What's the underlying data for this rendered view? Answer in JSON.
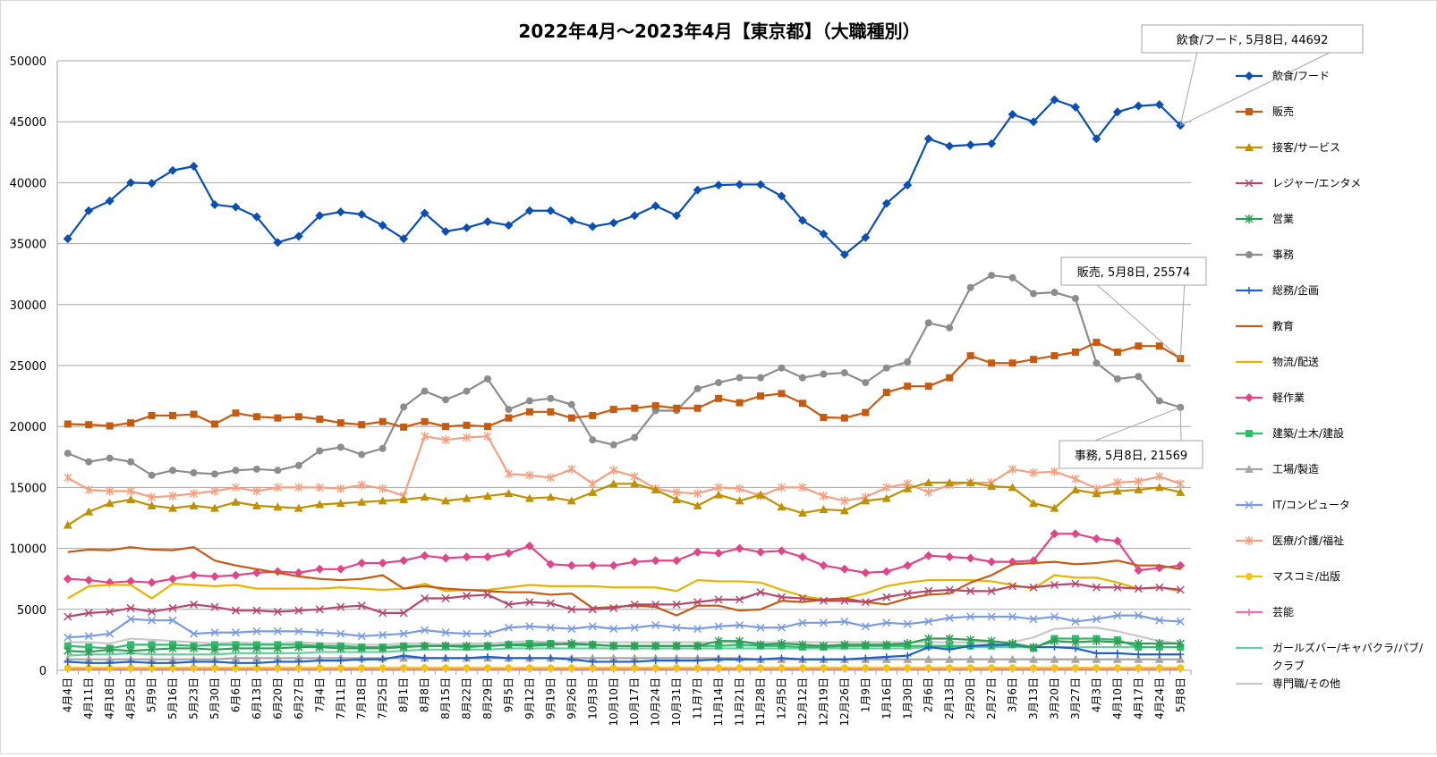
{
  "chart_data": {
    "type": "line",
    "title": "2022年4月～2023年4月【東京都】（大職種別）",
    "xlabel": "",
    "ylabel": "",
    "ylim": [
      0,
      50000
    ],
    "yticks": [
      0,
      5000,
      10000,
      15000,
      20000,
      25000,
      30000,
      35000,
      40000,
      45000,
      50000
    ],
    "grid": true,
    "legend_position": "right",
    "categories": [
      "4月4日",
      "4月11日",
      "4月18日",
      "4月25日",
      "5月9日",
      "5月16日",
      "5月23日",
      "5月30日",
      "6月6日",
      "6月13日",
      "6月20日",
      "6月27日",
      "7月4日",
      "7月11日",
      "7月18日",
      "7月25日",
      "8月1日",
      "8月8日",
      "8月15日",
      "8月22日",
      "8月29日",
      "9月5日",
      "9月12日",
      "9月19日",
      "9月26日",
      "10月3日",
      "10月10日",
      "10月17日",
      "10月24日",
      "10月31日",
      "11月7日",
      "11月14日",
      "11月21日",
      "11月28日",
      "12月5日",
      "12月12日",
      "12月19日",
      "12月26日",
      "1月9日",
      "1月16日",
      "1月30日",
      "2月6日",
      "2月13日",
      "2月20日",
      "2月27日",
      "3月6日",
      "3月13日",
      "3月20日",
      "3月27日",
      "4月3日",
      "4月10日",
      "4月17日",
      "4月24日",
      "5月8日"
    ],
    "series": [
      {
        "name": "飲食/フード",
        "color": "#0b4fb3",
        "marker": "diamond",
        "values": [
          35400,
          37700,
          38500,
          40000,
          39950,
          41000,
          41350,
          38200,
          38000,
          37200,
          35100,
          35600,
          37300,
          37600,
          37400,
          36500,
          35400,
          37500,
          36000,
          36300,
          36800,
          36500,
          37700,
          37700,
          36900,
          36400,
          36700,
          37300,
          38100,
          37300,
          39400,
          39800,
          39850,
          39850,
          38900,
          36900,
          35800,
          34100,
          35500,
          38300,
          39800,
          43600,
          43000,
          43100,
          43200,
          45600,
          45000,
          46800,
          46200,
          43600,
          45800,
          46300,
          46400,
          44692
        ]
      },
      {
        "name": "販売",
        "color": "#c55a11",
        "marker": "square",
        "values": [
          20200,
          20150,
          20050,
          20300,
          20900,
          20900,
          21000,
          20200,
          21100,
          20800,
          20700,
          20800,
          20600,
          20300,
          20150,
          20400,
          19950,
          20400,
          20000,
          20100,
          20000,
          20700,
          21200,
          21200,
          20700,
          20900,
          21400,
          21500,
          21700,
          21500,
          21500,
          22300,
          21950,
          22500,
          22700,
          21900,
          20750,
          20700,
          21150,
          22800,
          23300,
          23300,
          24000,
          25800,
          25200,
          25200,
          25500,
          25800,
          26100,
          26900,
          26100,
          26600,
          26600,
          25574
        ]
      },
      {
        "name": "接客/サービス",
        "color": "#bf9000",
        "marker": "triangle",
        "values": [
          11900,
          13000,
          13700,
          14000,
          13500,
          13300,
          13500,
          13300,
          13800,
          13500,
          13400,
          13300,
          13600,
          13700,
          13800,
          13900,
          14000,
          14200,
          13900,
          14100,
          14300,
          14500,
          14100,
          14200,
          13900,
          14600,
          15300,
          15300,
          14800,
          14000,
          13500,
          14400,
          13900,
          14400,
          13400,
          12900,
          13200,
          13100,
          13900,
          14100,
          14900,
          15400,
          15400,
          15400,
          15100,
          15000,
          13700,
          13300,
          14800,
          14500,
          14700,
          14800,
          15000,
          14600
        ]
      },
      {
        "name": "レジャー/エンタメ",
        "color": "#b5476a",
        "marker": "x",
        "values": [
          4400,
          4700,
          4800,
          5100,
          4800,
          5100,
          5400,
          5200,
          4900,
          4900,
          4800,
          4900,
          5000,
          5200,
          5300,
          4700,
          4700,
          5900,
          5900,
          6100,
          6200,
          5400,
          5600,
          5500,
          5000,
          5000,
          5100,
          5400,
          5400,
          5400,
          5600,
          5800,
          5800,
          6400,
          6000,
          5900,
          5700,
          5700,
          5600,
          6000,
          6300,
          6500,
          6600,
          6500,
          6500,
          6900,
          6800,
          7000,
          7100,
          6800,
          6800,
          6700,
          6800,
          6600
        ]
      },
      {
        "name": "営業",
        "color": "#2e9e57",
        "marker": "star",
        "values": [
          1600,
          1500,
          1700,
          1600,
          1700,
          1800,
          1800,
          1700,
          1800,
          1800,
          1800,
          1900,
          1900,
          1800,
          1800,
          1800,
          1900,
          2000,
          2000,
          2000,
          2000,
          2100,
          2000,
          2100,
          2200,
          2100,
          2000,
          2000,
          2000,
          2000,
          2000,
          2400,
          2400,
          2100,
          2200,
          2100,
          2000,
          2100,
          2100,
          2100,
          2200,
          2600,
          2600,
          2500,
          2400,
          2200,
          1900,
          2400,
          2300,
          2400,
          2300,
          2200,
          2200,
          2200
        ]
      },
      {
        "name": "事務",
        "color": "#8c8c8c",
        "marker": "circle",
        "values": [
          17800,
          17100,
          17400,
          17100,
          16000,
          16400,
          16200,
          16100,
          16400,
          16500,
          16400,
          16800,
          18000,
          18300,
          17700,
          18200,
          21600,
          22900,
          22200,
          22900,
          23900,
          21400,
          22100,
          22300,
          21800,
          18900,
          18500,
          19100,
          21300,
          21300,
          23100,
          23600,
          24000,
          24000,
          24800,
          24000,
          24300,
          24400,
          23600,
          24800,
          25300,
          28500,
          28100,
          31400,
          32400,
          32200,
          30900,
          31000,
          30500,
          25200,
          23900,
          24100,
          22100,
          21569
        ]
      },
      {
        "name": "総務/企画",
        "color": "#1f5fc7",
        "marker": "plus",
        "values": [
          700,
          600,
          600,
          700,
          600,
          600,
          700,
          700,
          600,
          600,
          700,
          700,
          800,
          800,
          900,
          900,
          1200,
          1000,
          1000,
          1000,
          1100,
          1000,
          1000,
          1000,
          900,
          700,
          700,
          700,
          800,
          800,
          800,
          900,
          900,
          900,
          1000,
          900,
          900,
          900,
          1000,
          1100,
          1200,
          1900,
          1700,
          2000,
          2100,
          2100,
          1900,
          1900,
          1800,
          1400,
          1400,
          1300,
          1300,
          1300
        ]
      },
      {
        "name": "教育",
        "color": "#c55a11",
        "marker": "none",
        "values": [
          9700,
          9900,
          9850,
          10100,
          9900,
          9850,
          10100,
          9000,
          8600,
          8300,
          8000,
          7700,
          7500,
          7400,
          7500,
          7800,
          6700,
          6900,
          6700,
          6600,
          6500,
          6400,
          6400,
          6200,
          6300,
          5100,
          5200,
          5300,
          5200,
          4500,
          5300,
          5300,
          4900,
          5000,
          5700,
          5600,
          5800,
          5900,
          5600,
          5400,
          5900,
          6200,
          6300,
          7200,
          7800,
          8700,
          8800,
          8900,
          8700,
          8800,
          9000,
          8600,
          8600,
          8300
        ]
      },
      {
        "name": "物流/配送",
        "color": "#e6b400",
        "marker": "none",
        "values": [
          5900,
          6900,
          7000,
          7000,
          5900,
          7100,
          7000,
          6900,
          7000,
          6700,
          6700,
          6700,
          6700,
          6800,
          6700,
          6600,
          6700,
          7100,
          6500,
          6600,
          6600,
          6800,
          7000,
          6900,
          6900,
          6900,
          6800,
          6800,
          6800,
          6500,
          7400,
          7300,
          7300,
          7200,
          6600,
          6100,
          5800,
          5900,
          6300,
          6900,
          7200,
          7400,
          7400,
          7400,
          7300,
          7000,
          6700,
          7800,
          7600,
          7600,
          7200,
          6700,
          6800,
          6500
        ]
      },
      {
        "name": "軽作業",
        "color": "#e0458a",
        "marker": "diamond",
        "values": [
          7500,
          7400,
          7200,
          7300,
          7200,
          7500,
          7800,
          7700,
          7800,
          8000,
          8100,
          8000,
          8300,
          8300,
          8800,
          8800,
          9000,
          9400,
          9200,
          9300,
          9300,
          9600,
          10200,
          8700,
          8600,
          8600,
          8600,
          8900,
          9000,
          9000,
          9700,
          9600,
          10000,
          9700,
          9800,
          9300,
          8600,
          8300,
          8000,
          8100,
          8600,
          9400,
          9300,
          9200,
          8900,
          8900,
          9000,
          11200,
          11200,
          10800,
          10600,
          8200,
          8400,
          8600
        ]
      },
      {
        "name": "建築/土木/建設",
        "color": "#2ebd6a",
        "marker": "square",
        "values": [
          2000,
          1900,
          1800,
          2100,
          2100,
          2100,
          2000,
          2100,
          2100,
          2100,
          2100,
          2100,
          2000,
          2000,
          1900,
          1900,
          2000,
          2000,
          2000,
          1900,
          2000,
          2100,
          2200,
          2200,
          2100,
          2100,
          2000,
          2000,
          2000,
          2000,
          2000,
          2000,
          2100,
          2000,
          2000,
          1900,
          1900,
          2000,
          2000,
          2000,
          2000,
          2000,
          2000,
          2000,
          2000,
          2100,
          1800,
          2600,
          2600,
          2600,
          2500,
          1900,
          1900,
          1900
        ]
      },
      {
        "name": "工場/製造",
        "color": "#a6a6a6",
        "marker": "triangle",
        "values": [
          900,
          900,
          900,
          900,
          900,
          900,
          900,
          900,
          1000,
          1000,
          1000,
          1000,
          1000,
          1000,
          1000,
          1000,
          1000,
          1000,
          1000,
          1000,
          1000,
          1000,
          1000,
          1000,
          1000,
          1000,
          1000,
          1000,
          1000,
          1000,
          1000,
          1000,
          1000,
          900,
          900,
          900,
          900,
          900,
          900,
          900,
          900,
          900,
          900,
          900,
          900,
          900,
          900,
          900,
          900,
          900,
          900,
          900,
          900,
          900
        ]
      },
      {
        "name": "IT/コンピュータ",
        "color": "#7a9be0",
        "marker": "x",
        "values": [
          2700,
          2800,
          3000,
          4200,
          4100,
          4100,
          3000,
          3100,
          3100,
          3200,
          3200,
          3200,
          3100,
          3000,
          2800,
          2900,
          3000,
          3300,
          3100,
          3000,
          3000,
          3500,
          3600,
          3500,
          3400,
          3600,
          3400,
          3500,
          3700,
          3500,
          3400,
          3600,
          3700,
          3500,
          3500,
          3900,
          3900,
          4000,
          3600,
          3900,
          3800,
          4000,
          4300,
          4400,
          4400,
          4400,
          4200,
          4400,
          4000,
          4200,
          4500,
          4500,
          4100,
          4000
        ]
      },
      {
        "name": "医療/介護/福祉",
        "color": "#f4a181",
        "marker": "star",
        "values": [
          15800,
          14800,
          14700,
          14700,
          14200,
          14300,
          14500,
          14700,
          15000,
          14700,
          15000,
          15000,
          15000,
          14900,
          15200,
          14900,
          14300,
          19200,
          18900,
          19100,
          19200,
          16100,
          16000,
          15800,
          16500,
          15300,
          16400,
          15900,
          14900,
          14600,
          14500,
          15000,
          14900,
          14300,
          15000,
          15000,
          14300,
          13900,
          14200,
          15000,
          15300,
          14600,
          15200,
          15400,
          15400,
          16500,
          16200,
          16300,
          15700,
          14900,
          15400,
          15500,
          15900,
          15300
        ]
      },
      {
        "name": "マスコミ/出版",
        "color": "#f2c318",
        "marker": "circle",
        "values": [
          200,
          200,
          200,
          200,
          200,
          200,
          200,
          200,
          200,
          200,
          200,
          200,
          200,
          200,
          200,
          200,
          200,
          200,
          200,
          200,
          200,
          200,
          200,
          200,
          200,
          200,
          200,
          200,
          200,
          200,
          200,
          200,
          200,
          200,
          200,
          200,
          200,
          200,
          200,
          200,
          200,
          200,
          200,
          200,
          200,
          200,
          200,
          200,
          200,
          200,
          200,
          200,
          200,
          200
        ]
      },
      {
        "name": "芸能",
        "color": "#f06aa8",
        "marker": "plus",
        "values": [
          100,
          100,
          100,
          100,
          100,
          100,
          100,
          100,
          100,
          100,
          100,
          100,
          100,
          100,
          100,
          100,
          100,
          100,
          100,
          100,
          100,
          100,
          100,
          100,
          100,
          100,
          100,
          100,
          100,
          100,
          100,
          100,
          100,
          100,
          100,
          100,
          100,
          100,
          100,
          100,
          100,
          100,
          100,
          100,
          100,
          100,
          100,
          100,
          100,
          100,
          100,
          100,
          100,
          100
        ]
      },
      {
        "name": "ガールズバー/キャバクラ/パブ/クラブ",
        "color": "#5fd39b",
        "marker": "none",
        "values": [
          1200,
          1300,
          1300,
          1400,
          1300,
          1300,
          1300,
          1300,
          1400,
          1400,
          1400,
          1400,
          1500,
          1500,
          1500,
          1500,
          1600,
          1700,
          1700,
          1700,
          1700,
          1800,
          1800,
          1800,
          1800,
          1800,
          1800,
          1800,
          1800,
          1800,
          1800,
          1800,
          1800,
          1800,
          1800,
          1800,
          1800,
          1800,
          1800,
          1800,
          1800,
          1900,
          1900,
          1900,
          1900,
          1900,
          1900,
          1900,
          1900,
          1900,
          1900,
          1900,
          1900,
          1900
        ]
      },
      {
        "name": "専門職/その他",
        "color": "#c8c8c8",
        "marker": "none",
        "values": [
          2300,
          2300,
          2200,
          2600,
          2500,
          2400,
          2300,
          2200,
          2300,
          2200,
          2200,
          2300,
          2200,
          2200,
          2100,
          2100,
          2200,
          2200,
          2100,
          2200,
          2200,
          2300,
          2400,
          2300,
          2300,
          2300,
          2300,
          2300,
          2300,
          2300,
          2300,
          2300,
          2300,
          2300,
          2300,
          2300,
          2300,
          2300,
          2300,
          2300,
          2300,
          2300,
          2300,
          2300,
          2300,
          2300,
          2700,
          3400,
          3500,
          3500,
          3200,
          2800,
          2400,
          2200
        ]
      }
    ],
    "annotations": [
      {
        "text": "飲食/フード, 5月8日, 44692",
        "series": 0
      },
      {
        "text": "販売, 5月8日, 25574",
        "series": 1
      },
      {
        "text": "事務, 5月8日, 21569",
        "series": 5
      }
    ]
  }
}
